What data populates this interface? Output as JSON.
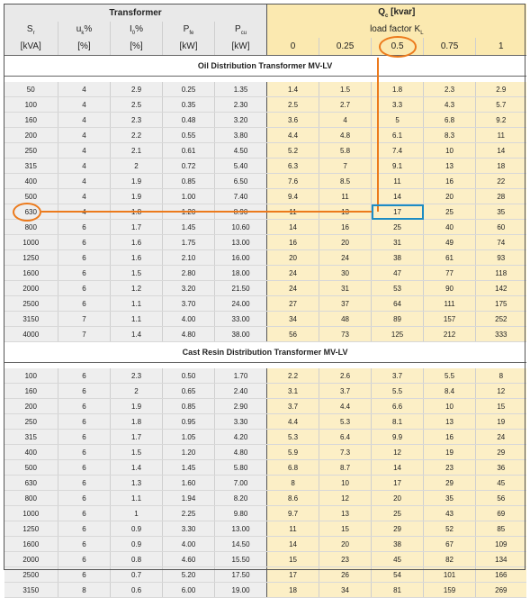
{
  "header": {
    "transformer_title": "Transformer",
    "qc_title": "Q",
    "qc_sub": "c",
    "qc_unit": " [kvar]",
    "load_factor_label": "load factor K",
    "load_factor_sub": "L",
    "col_sr": "S",
    "col_sr_sub": "r",
    "col_uk": "u",
    "col_uk_sub": "k",
    "col_uk_unit": "%",
    "col_i0": "I",
    "col_i0_sub": "0",
    "col_i0_unit": "%",
    "col_pfe": "P",
    "col_pfe_sub": "fe",
    "col_pcu": "P",
    "col_pcu_sub": "cu",
    "unit_sr": "[kVA]",
    "unit_uk": "[%]",
    "unit_i0": "[%]",
    "unit_pfe": "[kW]",
    "unit_pcu": "[kW]",
    "load_factors": [
      "0",
      "0.25",
      "0.5",
      "0.75",
      "1"
    ]
  },
  "oil_section_title": "Oil Distribution Transformer MV-LV",
  "oil_rows": [
    [
      "50",
      "4",
      "2.9",
      "0.25",
      "1.35",
      "1.4",
      "1.5",
      "1.8",
      "2.3",
      "2.9"
    ],
    [
      "100",
      "4",
      "2.5",
      "0.35",
      "2.30",
      "2.5",
      "2.7",
      "3.3",
      "4.3",
      "5.7"
    ],
    [
      "160",
      "4",
      "2.3",
      "0.48",
      "3.20",
      "3.6",
      "4",
      "5",
      "6.8",
      "9.2"
    ],
    [
      "200",
      "4",
      "2.2",
      "0.55",
      "3.80",
      "4.4",
      "4.8",
      "6.1",
      "8.3",
      "11"
    ],
    [
      "250",
      "4",
      "2.1",
      "0.61",
      "4.50",
      "5.2",
      "5.8",
      "7.4",
      "10",
      "14"
    ],
    [
      "315",
      "4",
      "2",
      "0.72",
      "5.40",
      "6.3",
      "7",
      "9.1",
      "13",
      "18"
    ],
    [
      "400",
      "4",
      "1.9",
      "0.85",
      "6.50",
      "7.6",
      "8.5",
      "11",
      "16",
      "22"
    ],
    [
      "500",
      "4",
      "1.9",
      "1.00",
      "7.40",
      "9.4",
      "11",
      "14",
      "20",
      "28"
    ],
    [
      "630",
      "4",
      "1.8",
      "1.20",
      "8.90",
      "11",
      "13",
      "17",
      "25",
      "35"
    ],
    [
      "800",
      "6",
      "1.7",
      "1.45",
      "10.60",
      "14",
      "16",
      "25",
      "40",
      "60"
    ],
    [
      "1000",
      "6",
      "1.6",
      "1.75",
      "13.00",
      "16",
      "20",
      "31",
      "49",
      "74"
    ],
    [
      "1250",
      "6",
      "1.6",
      "2.10",
      "16.00",
      "20",
      "24",
      "38",
      "61",
      "93"
    ],
    [
      "1600",
      "6",
      "1.5",
      "2.80",
      "18.00",
      "24",
      "30",
      "47",
      "77",
      "118"
    ],
    [
      "2000",
      "6",
      "1.2",
      "3.20",
      "21.50",
      "24",
      "31",
      "53",
      "90",
      "142"
    ],
    [
      "2500",
      "6",
      "1.1",
      "3.70",
      "24.00",
      "27",
      "37",
      "64",
      "111",
      "175"
    ],
    [
      "3150",
      "7",
      "1.1",
      "4.00",
      "33.00",
      "34",
      "48",
      "89",
      "157",
      "252"
    ],
    [
      "4000",
      "7",
      "1.4",
      "4.80",
      "38.00",
      "56",
      "73",
      "125",
      "212",
      "333"
    ]
  ],
  "cast_section_title": "Cast Resin Distribution Transformer MV-LV",
  "cast_rows": [
    [
      "100",
      "6",
      "2.3",
      "0.50",
      "1.70",
      "2.2",
      "2.6",
      "3.7",
      "5.5",
      "8"
    ],
    [
      "160",
      "6",
      "2",
      "0.65",
      "2.40",
      "3.1",
      "3.7",
      "5.5",
      "8.4",
      "12"
    ],
    [
      "200",
      "6",
      "1.9",
      "0.85",
      "2.90",
      "3.7",
      "4.4",
      "6.6",
      "10",
      "15"
    ],
    [
      "250",
      "6",
      "1.8",
      "0.95",
      "3.30",
      "4.4",
      "5.3",
      "8.1",
      "13",
      "19"
    ],
    [
      "315",
      "6",
      "1.7",
      "1.05",
      "4.20",
      "5.3",
      "6.4",
      "9.9",
      "16",
      "24"
    ],
    [
      "400",
      "6",
      "1.5",
      "1.20",
      "4.80",
      "5.9",
      "7.3",
      "12",
      "19",
      "29"
    ],
    [
      "500",
      "6",
      "1.4",
      "1.45",
      "5.80",
      "6.8",
      "8.7",
      "14",
      "23",
      "36"
    ],
    [
      "630",
      "6",
      "1.3",
      "1.60",
      "7.00",
      "8",
      "10",
      "17",
      "29",
      "45"
    ],
    [
      "800",
      "6",
      "1.1",
      "1.94",
      "8.20",
      "8.6",
      "12",
      "20",
      "35",
      "56"
    ],
    [
      "1000",
      "6",
      "1",
      "2.25",
      "9.80",
      "9.7",
      "13",
      "25",
      "43",
      "69"
    ],
    [
      "1250",
      "6",
      "0.9",
      "3.30",
      "13.00",
      "11",
      "15",
      "29",
      "52",
      "85"
    ],
    [
      "1600",
      "6",
      "0.9",
      "4.00",
      "14.50",
      "14",
      "20",
      "38",
      "67",
      "109"
    ],
    [
      "2000",
      "6",
      "0.8",
      "4.60",
      "15.50",
      "15",
      "23",
      "45",
      "82",
      "134"
    ],
    [
      "2500",
      "6",
      "0.7",
      "5.20",
      "17.50",
      "17",
      "26",
      "54",
      "101",
      "166"
    ],
    [
      "3150",
      "8",
      "0.6",
      "6.00",
      "19.00",
      "18",
      "34",
      "81",
      "159",
      "269"
    ]
  ],
  "highlight": {
    "row_value": "630",
    "column_value": "0.5",
    "result_value": "17",
    "line_color": "#ec7a1c",
    "result_box_color": "#1d8cc3"
  },
  "colors": {
    "left_bg": "#eeeeee",
    "right_bg": "#fcefc6"
  }
}
